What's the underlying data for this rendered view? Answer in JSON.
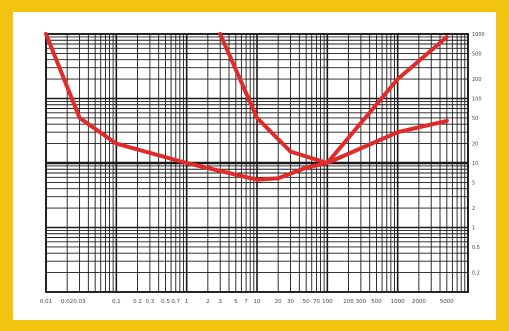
{
  "colors": {
    "frame": "#F2C40F",
    "paper": "#FFFFFF",
    "grid": "#1a1a1a",
    "curve": "#E02B2B",
    "tick_text": "#555555"
  },
  "chart_data": {
    "type": "line",
    "title": "",
    "xlabel": "",
    "ylabel": "",
    "x_scale": "log",
    "y_scale": "log",
    "xlim": [
      0.01,
      10000
    ],
    "ylim": [
      0.1,
      1000
    ],
    "grid": true,
    "legend": "none",
    "x_tick_labels": [
      {
        "v": 0.01,
        "label": "0.01"
      },
      {
        "v": 0.02,
        "label": "0.02"
      },
      {
        "v": 0.03,
        "label": "0.03"
      },
      {
        "v": 0.1,
        "label": "0.1"
      },
      {
        "v": 0.2,
        "label": "0.2"
      },
      {
        "v": 0.3,
        "label": "0.3"
      },
      {
        "v": 0.5,
        "label": "0.5"
      },
      {
        "v": 0.7,
        "label": "0.7"
      },
      {
        "v": 1,
        "label": "1"
      },
      {
        "v": 2,
        "label": "2"
      },
      {
        "v": 3,
        "label": "3"
      },
      {
        "v": 5,
        "label": "5"
      },
      {
        "v": 7,
        "label": "7"
      },
      {
        "v": 10,
        "label": "10"
      },
      {
        "v": 20,
        "label": "20"
      },
      {
        "v": 30,
        "label": "30"
      },
      {
        "v": 50,
        "label": "50"
      },
      {
        "v": 70,
        "label": "70"
      },
      {
        "v": 100,
        "label": "100"
      },
      {
        "v": 200,
        "label": "200"
      },
      {
        "v": 300,
        "label": "300"
      },
      {
        "v": 500,
        "label": "500"
      },
      {
        "v": 1000,
        "label": "1000"
      },
      {
        "v": 2000,
        "label": "2000"
      },
      {
        "v": 5000,
        "label": "5000"
      }
    ],
    "y_tick_labels": [
      {
        "v": 1000,
        "label": "1000"
      },
      {
        "v": 500,
        "label": "500"
      },
      {
        "v": 200,
        "label": "200"
      },
      {
        "v": 100,
        "label": "100"
      },
      {
        "v": 50,
        "label": "50"
      },
      {
        "v": 20,
        "label": "20"
      },
      {
        "v": 10,
        "label": "10"
      },
      {
        "v": 5,
        "label": "5"
      },
      {
        "v": 2,
        "label": "2"
      },
      {
        "v": 1,
        "label": "1"
      },
      {
        "v": 0.5,
        "label": "0.5"
      },
      {
        "v": 0.2,
        "label": "0.2"
      }
    ],
    "series": [
      {
        "points": [
          [
            0.01,
            1000
          ],
          [
            0.03,
            50
          ],
          [
            0.1,
            20
          ],
          [
            1,
            10
          ],
          [
            10,
            5.5
          ],
          [
            20,
            5.8
          ],
          [
            50,
            8.5
          ],
          [
            100,
            10
          ],
          [
            1000,
            200
          ],
          [
            5000,
            900
          ]
        ]
      },
      {
        "points": [
          [
            3,
            1000
          ],
          [
            10,
            50
          ],
          [
            30,
            15
          ],
          [
            100,
            10
          ],
          [
            1000,
            30
          ],
          [
            5000,
            45
          ]
        ]
      }
    ]
  }
}
